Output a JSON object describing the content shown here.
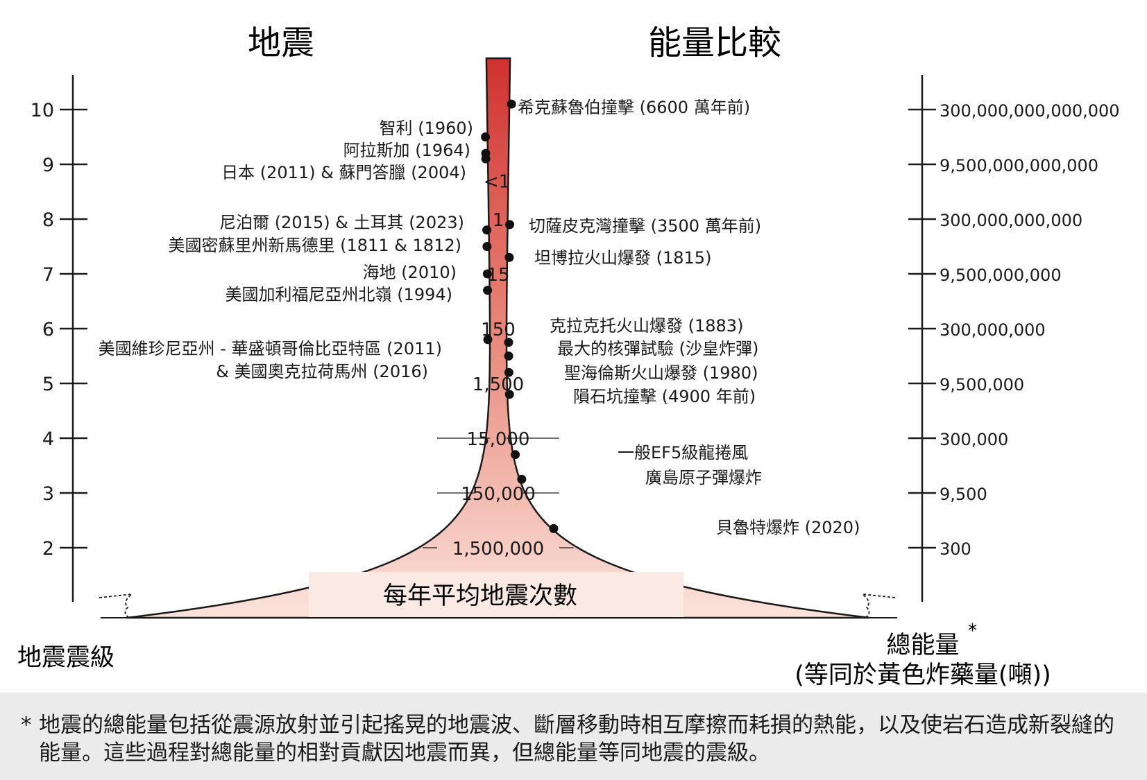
{
  "titles": {
    "left": "地震",
    "right": "能量比較"
  },
  "axis_labels": {
    "left": "地震震級",
    "right_line1": "總能量",
    "right_star": "*",
    "right_line2": "(等同於黃色炸藥量(噸))"
  },
  "magnitudes": [
    "10",
    "9",
    "8",
    "7",
    "6",
    "5",
    "4",
    "3",
    "2"
  ],
  "energies": [
    "300,000,000,000,000",
    "9,500,000,000,000",
    "300,000,000,000",
    "9,500,000,000",
    "300,000,000",
    "9,500,000",
    "300,000",
    "9,500",
    "300"
  ],
  "frequency_caption": "每年平均地震次數",
  "frequencies": [
    {
      "magnitude": 8.7,
      "label": "<1"
    },
    {
      "magnitude": 8.0,
      "label": "1"
    },
    {
      "magnitude": 7.0,
      "label": "15"
    },
    {
      "magnitude": 6.0,
      "label": "150"
    },
    {
      "magnitude": 5.0,
      "label": "1,500"
    },
    {
      "magnitude": 4.0,
      "label": "15,000"
    },
    {
      "magnitude": 3.0,
      "label": "150,000"
    },
    {
      "magnitude": 2.0,
      "label": "1,500,000"
    }
  ],
  "earthquakes": [
    {
      "label": "智利 (1960)",
      "magnitude": 9.5
    },
    {
      "label": "阿拉斯加 (1964)",
      "magnitude": 9.2
    },
    {
      "label": "日本 (2011) & 蘇門答臘 (2004)",
      "magnitude": 9.1
    },
    {
      "label": "尼泊爾 (2015) & 土耳其 (2023)",
      "magnitude": 7.8
    },
    {
      "label": "美國密蘇里州新馬德里 (1811 & 1812)",
      "magnitude": 7.5
    },
    {
      "label": "海地 (2010)",
      "magnitude": 7.0
    },
    {
      "label": "美國加利福尼亞州北嶺 (1994)",
      "magnitude": 6.7
    },
    {
      "label": "美國維珍尼亞州 - 華盛頓哥倫比亞特區 (2011)",
      "label2": "& 美國奧克拉荷馬州 (2016)",
      "magnitude": 5.8
    }
  ],
  "comparisons": [
    {
      "label": "希克蘇魯伯撞擊 (6600 萬年前)",
      "magnitude": 10.1
    },
    {
      "label": "切薩皮克灣撞擊 (3500 萬年前)",
      "magnitude": 7.9
    },
    {
      "label": "坦博拉火山爆發 (1815)",
      "magnitude": 7.3
    },
    {
      "label": "克拉克托火山爆發 (1883)",
      "magnitude": 5.75
    },
    {
      "label": "最大的核彈試驗 (沙皇炸彈)",
      "magnitude": 5.5
    },
    {
      "label": "聖海倫斯火山爆發 (1980)",
      "magnitude": 5.2
    },
    {
      "label": "隕石坑撞擊 (4900 年前)",
      "magnitude": 4.8
    },
    {
      "label": "一般EF5級龍捲風",
      "magnitude": 3.7
    },
    {
      "label": "廣島原子彈爆炸",
      "magnitude": 3.25
    },
    {
      "label": "貝魯特爆炸 (2020)",
      "magnitude": 2.35
    }
  ],
  "footnote": {
    "star": "*",
    "text": "地震的總能量包括從震源放射並引起搖晃的地震波、斷層移動時相互摩擦而耗損的熱能，以及使岩石造成新裂縫的能量。這些過程對總能量的相對貢獻因地震而異，但總能量等同地震的震級。"
  },
  "colors": {
    "top": "#d0312f",
    "bottom": "#fae3dc",
    "ink": "#1a1a1a"
  }
}
